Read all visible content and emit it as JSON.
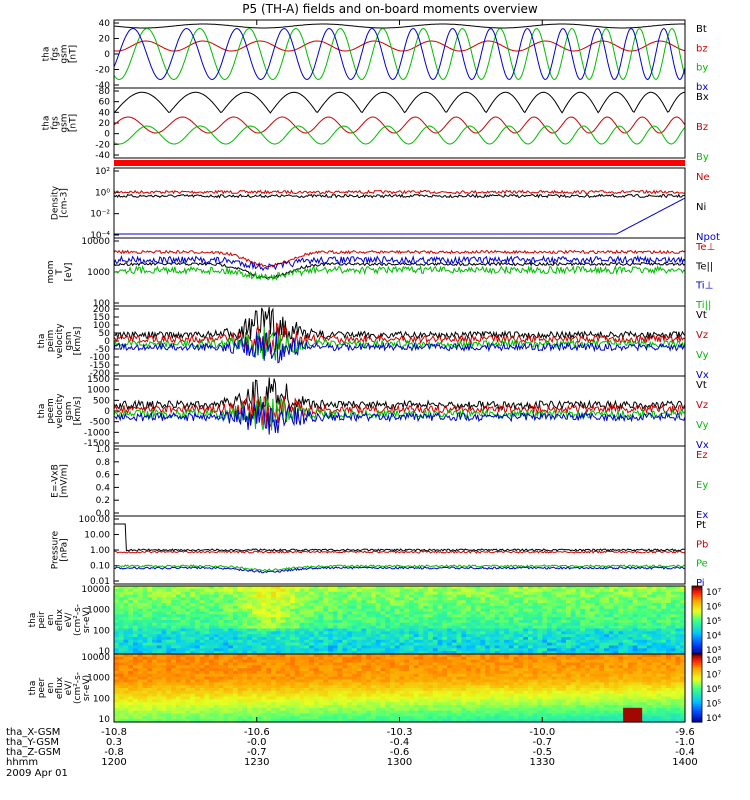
{
  "title": "P5 (TH-A) fields and on-board moments overview",
  "chart_data": [
    {
      "type": "line",
      "ylabel": [
        "tha",
        "fgs",
        "gsm",
        "[nT]"
      ],
      "yticks": [
        40,
        20,
        0,
        -20,
        -40
      ],
      "ylim": [
        -40,
        45
      ],
      "series": [
        {
          "name": "Bt",
          "color": "#000000"
        },
        {
          "name": "bz",
          "color": "#cc0000"
        },
        {
          "name": "by",
          "color": "#00bb00"
        },
        {
          "name": "bx",
          "color": "#0000cc"
        }
      ]
    },
    {
      "type": "line",
      "ylabel": [
        "tha",
        "fgs",
        "gsm",
        "[nT]"
      ],
      "yticks": [
        80,
        60,
        40,
        20,
        0,
        -20,
        -40
      ],
      "ylim": [
        -45,
        85
      ],
      "series": [
        {
          "name": "Bx",
          "color": "#000000"
        },
        {
          "name": "Bz",
          "color": "#cc0000"
        },
        {
          "name": "By",
          "color": "#00bb00"
        }
      ]
    },
    {
      "type": "line",
      "ylabel": [
        "Density",
        "[cm-3]"
      ],
      "yticks": [
        "10²",
        "10⁰",
        "10⁻²",
        "10⁻⁴"
      ],
      "scale": "log",
      "series": [
        {
          "name": "Ne",
          "color": "#cc0000"
        },
        {
          "name": "Ni",
          "color": "#000000"
        },
        {
          "name": "Npot",
          "color": "#0000cc"
        }
      ]
    },
    {
      "type": "line",
      "ylabel": [
        "mom",
        "T",
        "[eV]"
      ],
      "yticks": [
        10000,
        1000,
        100
      ],
      "scale": "log",
      "series": [
        {
          "name": "Te⊥",
          "color": "#cc0000"
        },
        {
          "name": "Te||",
          "color": "#000000"
        },
        {
          "name": "Ti⊥",
          "color": "#0000cc"
        },
        {
          "name": "Ti||",
          "color": "#00bb00"
        }
      ]
    },
    {
      "type": "line",
      "ylabel": [
        "tha",
        "peim",
        "velocity",
        "gsm",
        "[km/s]"
      ],
      "yticks": [
        200,
        150,
        100,
        50,
        0,
        -50,
        -100,
        -150,
        -200
      ],
      "ylim": [
        -200,
        200
      ],
      "series": [
        {
          "name": "Vt",
          "color": "#000000"
        },
        {
          "name": "Vz",
          "color": "#cc0000"
        },
        {
          "name": "Vy",
          "color": "#00bb00"
        },
        {
          "name": "Vx",
          "color": "#0000cc"
        }
      ]
    },
    {
      "type": "line",
      "ylabel": [
        "tha",
        "peem",
        "velocity",
        "gsm",
        "[km/s]"
      ],
      "yticks": [
        1500,
        1000,
        500,
        0,
        -500,
        -1000,
        -1500
      ],
      "ylim": [
        -1500,
        1500
      ],
      "series": [
        {
          "name": "Vt",
          "color": "#000000"
        },
        {
          "name": "Vz",
          "color": "#cc0000"
        },
        {
          "name": "Vy",
          "color": "#00bb00"
        },
        {
          "name": "Vx",
          "color": "#0000cc"
        }
      ]
    },
    {
      "type": "line",
      "ylabel": [
        "E=-VxB",
        "[mV/m]"
      ],
      "yticks": [
        "1.0",
        "0.8",
        "0.6",
        "0.4",
        "0.2",
        "0.0"
      ],
      "ylim": [
        0,
        1
      ],
      "series": [
        {
          "name": "Ez",
          "color": "#cc0000"
        },
        {
          "name": "Ey",
          "color": "#00bb00"
        },
        {
          "name": "Ex",
          "color": "#0000cc"
        }
      ]
    },
    {
      "type": "line",
      "ylabel": [
        "Pressure",
        "[nPa]"
      ],
      "yticks": [
        "100.00",
        "10.00",
        "1.00",
        "0.10",
        "0.01"
      ],
      "scale": "log",
      "series": [
        {
          "name": "Pt",
          "color": "#000000"
        },
        {
          "name": "Pb",
          "color": "#cc0000"
        },
        {
          "name": "Pe",
          "color": "#00bb00"
        },
        {
          "name": "Pi",
          "color": "#0000cc"
        }
      ]
    },
    {
      "type": "heatmap",
      "ylabel": [
        "tha",
        "peir",
        "en",
        "eflux",
        "eV/",
        "(cm²-s-",
        "sr-eV)"
      ],
      "yticks": [
        10000,
        1000,
        100,
        10
      ],
      "colorbar_ticks": [
        "10⁷",
        "10⁶",
        "10⁵",
        "10⁴",
        "10³"
      ],
      "scale": "log"
    },
    {
      "type": "heatmap",
      "ylabel": [
        "tha",
        "peer",
        "en",
        "eflux",
        "eV/",
        "(cm²-s-",
        "sr-eV)"
      ],
      "yticks": [
        10000,
        1000,
        100,
        10
      ],
      "colorbar_ticks": [
        "10⁸",
        "10⁷",
        "10⁶",
        "10⁵",
        "10⁴"
      ],
      "scale": "log"
    }
  ],
  "xaxis": {
    "tick_times": [
      "1200",
      "1230",
      "1300",
      "1330",
      "1400"
    ],
    "rows": [
      {
        "label": "tha_X-GSM",
        "values": [
          "-10.8",
          "-10.6",
          "-10.3",
          "-10.0",
          "-9.6"
        ]
      },
      {
        "label": "tha_Y-GSM",
        "values": [
          "0.3",
          "-0.0",
          "-0.4",
          "-0.7",
          "-1.0"
        ]
      },
      {
        "label": "tha_Z-GSM",
        "values": [
          "-0.8",
          "-0.7",
          "-0.6",
          "-0.5",
          "-0.4"
        ]
      },
      {
        "label": "hhmm",
        "values": [
          "1200",
          "1230",
          "1300",
          "1330",
          "1400"
        ]
      }
    ],
    "date": "2009 Apr 01"
  }
}
